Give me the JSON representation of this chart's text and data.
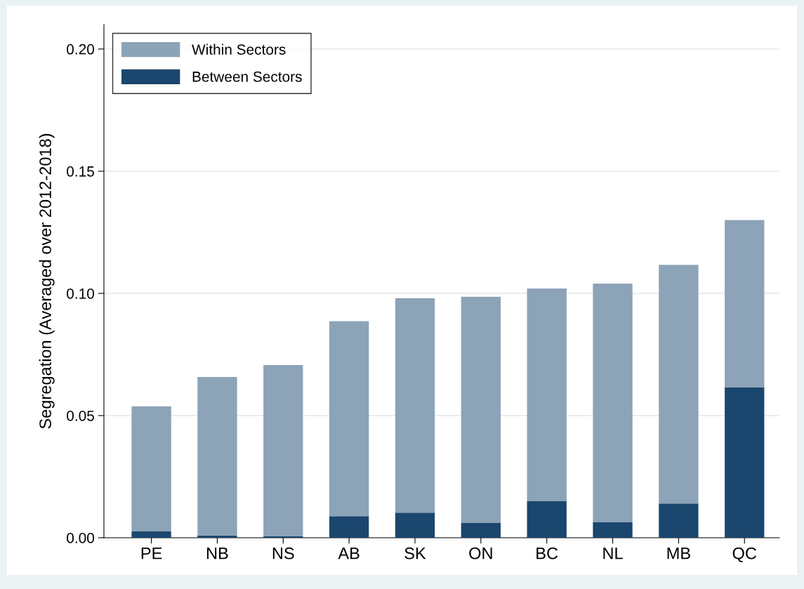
{
  "chart_data": {
    "type": "bar",
    "stacked": true,
    "ylabel": "Segregation (Averaged over 2012-2018)",
    "categories": [
      "PE",
      "NB",
      "NS",
      "AB",
      "SK",
      "ON",
      "BC",
      "NL",
      "MB",
      "QC"
    ],
    "series": [
      {
        "name": "Between Sectors",
        "color": "#1b466d",
        "values": [
          0.0026,
          0.0009,
          0.0006,
          0.0088,
          0.0103,
          0.006,
          0.0151,
          0.0063,
          0.014,
          0.0615
        ]
      },
      {
        "name": "Within Sectors",
        "color": "#8ca3b8",
        "values": [
          0.0512,
          0.0649,
          0.0701,
          0.0798,
          0.0877,
          0.0926,
          0.0869,
          0.0977,
          0.0977,
          0.0685
        ]
      }
    ],
    "ylim": [
      0,
      0.21
    ],
    "yticks": [
      {
        "value": 0,
        "label": "0.00"
      },
      {
        "value": 0.05,
        "label": "0.05"
      },
      {
        "value": 0.1,
        "label": "0.10"
      },
      {
        "value": 0.15,
        "label": "0.15"
      },
      {
        "value": 0.2,
        "label": "0.20"
      }
    ],
    "grid": "y",
    "legend": "top left"
  }
}
